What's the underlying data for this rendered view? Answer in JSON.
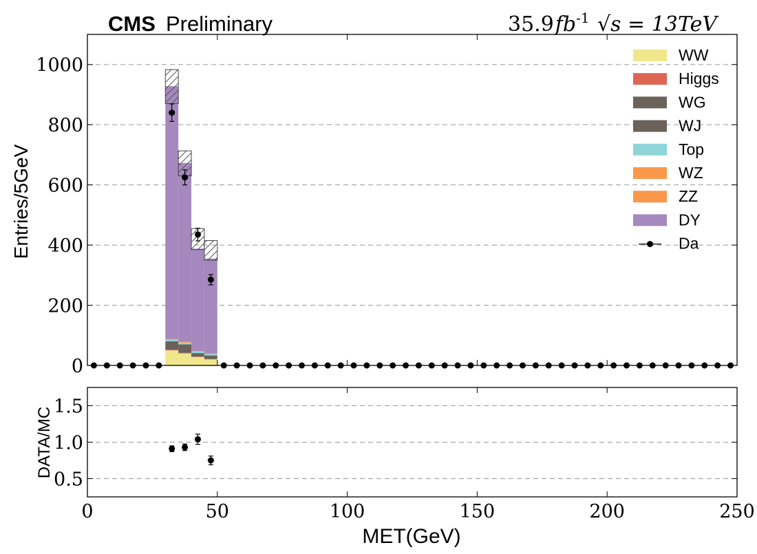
{
  "header": {
    "experiment": "CMS",
    "status": "Preliminary",
    "lumi": "35.9",
    "lumi_unit_prefix": "fb",
    "lumi_exp": "-1",
    "sqrt_s": "13TeV",
    "sqrt_label": "√s = 13TeV"
  },
  "chart_data": [
    {
      "type": "bar",
      "stacked": true,
      "title": "",
      "xlabel": "MET(GeV)",
      "ylabel": "Entries/5GeV",
      "xlim": [
        0,
        250
      ],
      "ylim": [
        0,
        1100
      ],
      "bin_width": 5,
      "xticks": [
        0,
        50,
        100,
        150,
        200,
        250
      ],
      "yticks": [
        0,
        200,
        400,
        600,
        800,
        1000
      ],
      "grid": "horizontal dashed",
      "legend_position": "top-right",
      "bin_low_edges": [
        30,
        35,
        40,
        45
      ],
      "series": [
        {
          "name": "WW",
          "color": "#f0e68c",
          "values": [
            50,
            40,
            28,
            20
          ]
        },
        {
          "name": "Higgs",
          "color": "#dd6655",
          "values": [
            2,
            2,
            1,
            1
          ]
        },
        {
          "name": "WG",
          "color": "#6b625a",
          "values": [
            28,
            28,
            12,
            12
          ]
        },
        {
          "name": "WJ",
          "color": "#6b625a",
          "values": [
            0,
            0,
            0,
            0
          ]
        },
        {
          "name": "Top",
          "color": "#8ed5d8",
          "values": [
            5,
            5,
            5,
            5
          ]
        },
        {
          "name": "WZ",
          "color": "#f9984b",
          "values": [
            2,
            2,
            1,
            1
          ]
        },
        {
          "name": "ZZ",
          "color": "#f9984b",
          "values": [
            1,
            1,
            1,
            1
          ]
        },
        {
          "name": "DY",
          "color": "#a589be",
          "values": [
            840,
            595,
            340,
            315
          ]
        }
      ],
      "mc_uncertainty": [
        {
          "x_low": 30,
          "low": 870,
          "high": 983
        },
        {
          "x_low": 35,
          "low": 630,
          "high": 713
        },
        {
          "x_low": 40,
          "low": 385,
          "high": 455
        },
        {
          "x_low": 45,
          "low": 350,
          "high": 415
        }
      ],
      "data": {
        "name": "Da",
        "x": [
          2.5,
          7.5,
          12.5,
          17.5,
          22.5,
          27.5,
          32.5,
          37.5,
          42.5,
          47.5,
          52.5,
          57.5,
          62.5,
          67.5,
          72.5,
          77.5,
          82.5,
          87.5,
          92.5,
          97.5,
          102.5,
          107.5,
          112.5,
          117.5,
          122.5,
          127.5,
          132.5,
          137.5,
          142.5,
          147.5,
          152.5,
          157.5,
          162.5,
          167.5,
          172.5,
          177.5,
          182.5,
          187.5,
          192.5,
          197.5,
          202.5,
          207.5,
          212.5,
          217.5,
          222.5,
          227.5,
          232.5,
          237.5,
          242.5,
          247.5
        ],
        "y": [
          0,
          0,
          0,
          0,
          0,
          0,
          840,
          625,
          435,
          285,
          0,
          0,
          0,
          0,
          0,
          0,
          0,
          0,
          0,
          0,
          0,
          0,
          0,
          0,
          0,
          0,
          0,
          0,
          0,
          0,
          0,
          0,
          0,
          0,
          0,
          0,
          0,
          0,
          0,
          0,
          0,
          0,
          0,
          0,
          0,
          0,
          0,
          0,
          0,
          0
        ],
        "yerr": [
          0,
          0,
          0,
          0,
          0,
          0,
          29,
          25,
          21,
          17,
          0,
          0,
          0,
          0,
          0,
          0,
          0,
          0,
          0,
          0,
          0,
          0,
          0,
          0,
          0,
          0,
          0,
          0,
          0,
          0,
          0,
          0,
          0,
          0,
          0,
          0,
          0,
          0,
          0,
          0,
          0,
          0,
          0,
          0,
          0,
          0,
          0,
          0,
          0,
          0
        ]
      }
    },
    {
      "type": "scatter",
      "title": "",
      "xlabel": "MET(GeV)",
      "ylabel": "DATA/MC",
      "xlim": [
        0,
        250
      ],
      "ylim": [
        0.25,
        1.75
      ],
      "xticks": [
        0,
        50,
        100,
        150,
        200,
        250
      ],
      "yticks": [
        0.5,
        1.0,
        1.5
      ],
      "ytick_labels": [
        "0.5",
        "1.0",
        "1.5"
      ],
      "grid": "horizontal dashed",
      "x": [
        32.5,
        37.5,
        42.5,
        47.5
      ],
      "y": [
        0.91,
        0.93,
        1.04,
        0.75
      ],
      "yerr": [
        0.04,
        0.045,
        0.07,
        0.06
      ]
    }
  ]
}
